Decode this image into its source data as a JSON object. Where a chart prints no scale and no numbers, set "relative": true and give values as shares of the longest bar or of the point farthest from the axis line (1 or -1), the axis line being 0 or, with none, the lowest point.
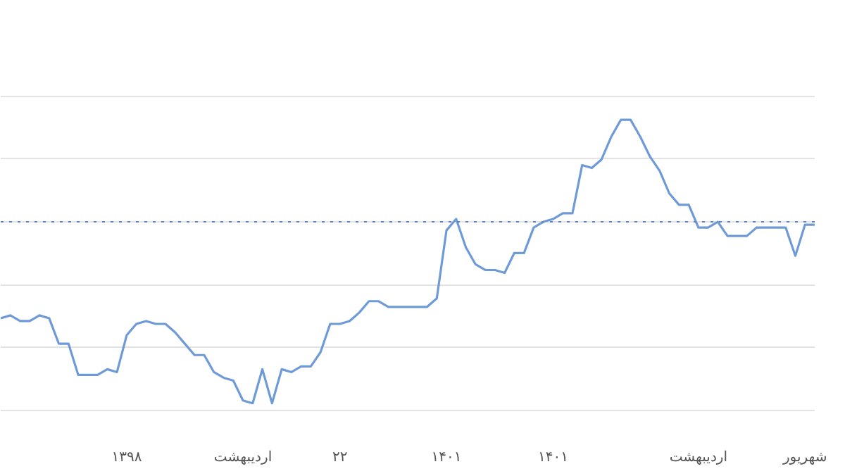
{
  "chart_data": {
    "type": "line",
    "relative": true,
    "grid": "y",
    "marker": "none",
    "line_style": "solid",
    "categories": [
      null,
      null,
      null,
      null,
      null,
      null,
      null,
      null,
      null,
      null,
      null,
      null,
      null,
      "۱۳۹۸",
      null,
      null,
      null,
      null,
      null,
      null,
      null,
      null,
      null,
      null,
      null,
      "اردیبهشت",
      null,
      null,
      null,
      null,
      null,
      null,
      null,
      null,
      null,
      "۲۲",
      null,
      null,
      null,
      null,
      null,
      null,
      null,
      null,
      null,
      null,
      "۱۴۰۱",
      null,
      null,
      null,
      null,
      null,
      null,
      null,
      null,
      null,
      null,
      "۱۴۰۱",
      null,
      null,
      null,
      null,
      null,
      null,
      null,
      null,
      null,
      null,
      null,
      null,
      null,
      null,
      "اردیبهشت",
      null,
      null,
      null,
      null,
      null,
      null,
      null,
      null,
      null,
      null,
      "شهریور",
      null
    ],
    "series": [
      {
        "color": "#6f9ad8",
        "values": [
          0.3,
          0.31,
          0.29,
          0.29,
          0.31,
          0.3,
          0.21,
          0.21,
          0.1,
          0.1,
          0.1,
          0.12,
          0.11,
          0.24,
          0.28,
          0.29,
          0.28,
          0.28,
          0.25,
          0.21,
          0.17,
          0.17,
          0.11,
          0.09,
          0.08,
          0.01,
          0,
          0.12,
          0,
          0.12,
          0.11,
          0.13,
          0.13,
          0.18,
          0.28,
          0.28,
          0.29,
          0.32,
          0.36,
          0.36,
          0.34,
          0.34,
          0.34,
          0.34,
          0.34,
          0.37,
          0.61,
          0.65,
          0.55,
          0.49,
          0.47,
          0.47,
          0.46,
          0.53,
          0.53,
          0.62,
          0.64,
          0.65,
          0.67,
          0.67,
          0.84,
          0.83,
          0.86,
          0.94,
          1,
          1,
          0.94,
          0.87,
          0.82,
          0.74,
          0.7,
          0.7,
          0.62,
          0.62,
          0.64,
          0.59,
          0.59,
          0.59,
          0.62,
          0.62,
          0.62,
          0.62,
          0.52,
          0.63,
          0.63
        ]
      }
    ],
    "ref_lines": [
      {
        "axis": "y",
        "value": 0.64,
        "color": "#5b85c8",
        "line_style": "dotted"
      }
    ]
  }
}
